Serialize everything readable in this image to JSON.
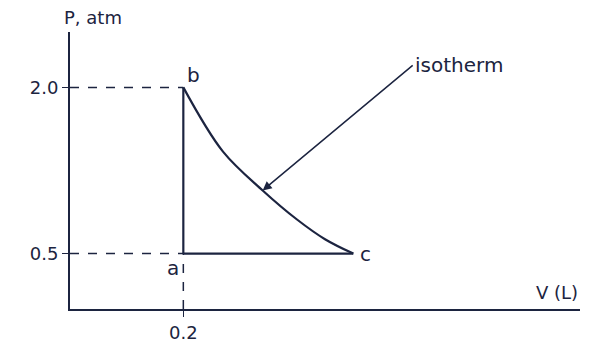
{
  "chart_data": {
    "type": "line",
    "x_label": "V (L)",
    "y_label": "P, atm",
    "color": "#1c2440",
    "xlim": [
      0,
      0.9
    ],
    "ylim": [
      0,
      2.5
    ],
    "xticks": [
      0.2
    ],
    "yticks": [
      0.5,
      {
        "value": 2,
        "label": "2.0"
      }
    ],
    "grid": false,
    "series": [
      {
        "x": [
          0.2,
          0.2
        ],
        "values": [
          0.5,
          2.0
        ],
        "line_style": "solid"
      },
      {
        "x": [
          0.2,
          0.5
        ],
        "values": [
          0.5,
          0.5
        ],
        "line_style": "solid"
      },
      {
        "x": [
          0.2,
          0.27,
          0.34,
          0.4,
          0.45,
          0.5
        ],
        "values": [
          2.0,
          1.42,
          1.07,
          0.81,
          0.63,
          0.5
        ],
        "line_style": "solid"
      },
      {
        "x": [
          0,
          0.2
        ],
        "values": [
          2.0,
          2.0
        ],
        "line_style": "dashed"
      },
      {
        "x": [
          0,
          0.2
        ],
        "values": [
          0.5,
          0.5
        ],
        "line_style": "dashed"
      },
      {
        "x": [
          0.2,
          0.2
        ],
        "values": [
          0,
          0.5
        ],
        "line_style": "dashed"
      }
    ],
    "points": [
      {
        "label": "a",
        "x": 0.2,
        "y": 0.5
      },
      {
        "label": "b",
        "x": 0.2,
        "y": 2.0
      },
      {
        "label": "c",
        "x": 0.5,
        "y": 0.5
      }
    ],
    "annotations": [
      {
        "text": "isotherm",
        "x": 0.34,
        "y": 1.07
      }
    ]
  }
}
